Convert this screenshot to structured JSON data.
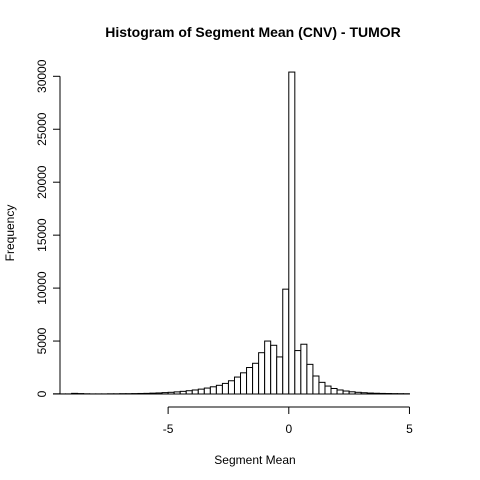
{
  "chart_data": {
    "type": "bar",
    "title": "Histogram of Segment Mean (CNV) - TUMOR",
    "xlabel": "Segment Mean",
    "ylabel": "Frequency",
    "xlim": [
      -8.9,
      6.1
    ],
    "ylim": [
      0,
      30500
    ],
    "bin_width": 0.25,
    "x_ticks": [
      -5,
      0,
      5
    ],
    "y_ticks": [
      0,
      5000,
      10000,
      15000,
      20000,
      25000,
      30000
    ],
    "bins": [
      {
        "x0": -8.75,
        "count": 20
      },
      {
        "x0": -8.5,
        "count": 10
      },
      {
        "x0": -8.25,
        "count": 10
      },
      {
        "x0": -8.0,
        "count": 60
      },
      {
        "x0": -7.75,
        "count": 40
      },
      {
        "x0": -7.5,
        "count": 20
      },
      {
        "x0": -7.25,
        "count": 10
      },
      {
        "x0": -7.0,
        "count": 10
      },
      {
        "x0": -6.75,
        "count": 10
      },
      {
        "x0": -6.5,
        "count": 20
      },
      {
        "x0": -6.25,
        "count": 20
      },
      {
        "x0": -6.0,
        "count": 30
      },
      {
        "x0": -5.75,
        "count": 30
      },
      {
        "x0": -5.5,
        "count": 40
      },
      {
        "x0": -5.25,
        "count": 50
      },
      {
        "x0": -5.0,
        "count": 60
      },
      {
        "x0": -4.75,
        "count": 80
      },
      {
        "x0": -4.5,
        "count": 100
      },
      {
        "x0": -4.25,
        "count": 130
      },
      {
        "x0": -4.0,
        "count": 160
      },
      {
        "x0": -3.75,
        "count": 200
      },
      {
        "x0": -3.5,
        "count": 250
      },
      {
        "x0": -3.25,
        "count": 310
      },
      {
        "x0": -3.0,
        "count": 380
      },
      {
        "x0": -2.75,
        "count": 460
      },
      {
        "x0": -2.5,
        "count": 560
      },
      {
        "x0": -2.25,
        "count": 680
      },
      {
        "x0": -2.0,
        "count": 820
      },
      {
        "x0": -1.75,
        "count": 1000
      },
      {
        "x0": -1.5,
        "count": 1250
      },
      {
        "x0": -1.25,
        "count": 1600
      },
      {
        "x0": -1.0,
        "count": 2000
      },
      {
        "x0": -0.75,
        "count": 2500
      },
      {
        "x0": -0.5,
        "count": 2900
      },
      {
        "x0": -0.25,
        "count": 3900
      },
      {
        "x0": 0.0,
        "count": 5000
      },
      {
        "x0": 0.25,
        "count": 4600
      },
      {
        "x0": 0.5,
        "count": 3500
      },
      {
        "x0": 0.75,
        "count": 9900
      },
      {
        "x0": 1.0,
        "count": 30400
      },
      {
        "x0": 1.25,
        "count": 4100
      },
      {
        "x0": 1.5,
        "count": 4700
      },
      {
        "x0": 1.75,
        "count": 2800
      },
      {
        "x0": 2.0,
        "count": 1700
      },
      {
        "x0": 2.25,
        "count": 1100
      },
      {
        "x0": 2.5,
        "count": 750
      },
      {
        "x0": 2.75,
        "count": 520
      },
      {
        "x0": 3.0,
        "count": 380
      },
      {
        "x0": 3.25,
        "count": 280
      },
      {
        "x0": 3.5,
        "count": 210
      },
      {
        "x0": 3.75,
        "count": 160
      },
      {
        "x0": 4.0,
        "count": 120
      },
      {
        "x0": 4.25,
        "count": 90
      },
      {
        "x0": 4.5,
        "count": 70
      },
      {
        "x0": 4.75,
        "count": 55
      },
      {
        "x0": 5.0,
        "count": 45
      },
      {
        "x0": 5.25,
        "count": 35
      },
      {
        "x0": 5.5,
        "count": 30
      },
      {
        "x0": 5.75,
        "count": 25
      }
    ]
  }
}
